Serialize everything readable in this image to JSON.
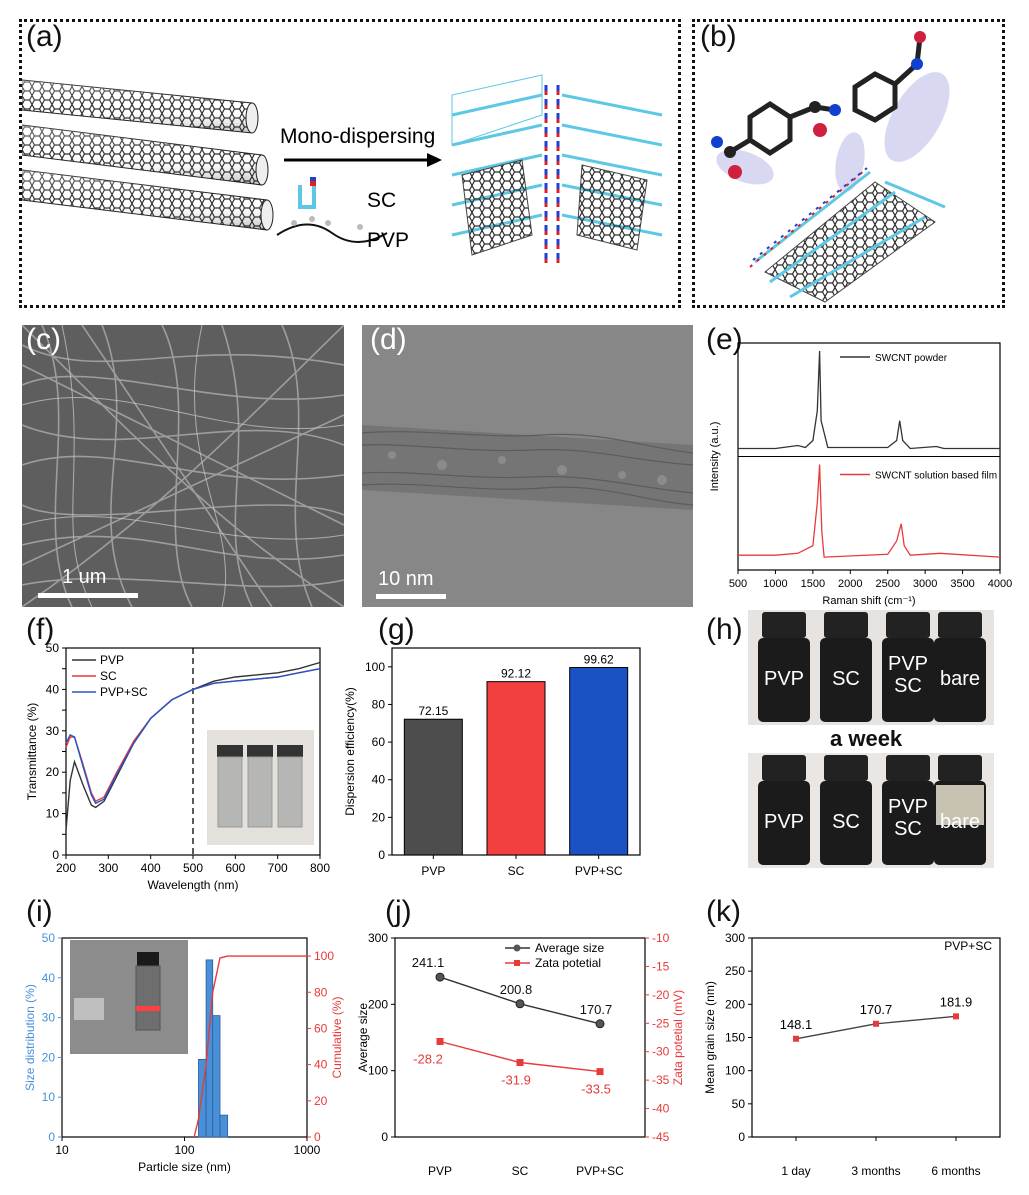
{
  "panels": {
    "a": "(a)",
    "b": "(b)",
    "c": "(c)",
    "d": "(d)",
    "e": "(e)",
    "f": "(f)",
    "g": "(g)",
    "h": "(h)",
    "i": "(i)",
    "j": "(j)",
    "k": "(k)"
  },
  "schematic_a": {
    "arrow_label": "Mono-dispersing",
    "sc_label": "SC",
    "pvp_label": "PVP"
  },
  "sem_c": {
    "scale_label": "1 um"
  },
  "tem_d": {
    "scale_label": "10 nm"
  },
  "vials_h": {
    "labels_top": [
      "PVP",
      "SC",
      "PVP SC",
      "bare"
    ],
    "caption": "a week",
    "labels_bottom": [
      "PVP",
      "SC",
      "PVP SC",
      "bare"
    ]
  },
  "colors": {
    "black_series": "#333333",
    "red_series": "#e83a3a",
    "blue_series": "#2255cc",
    "gray_bar": "#4d4d4d",
    "red_bar": "#f24040",
    "blue_bar": "#1a52c4",
    "hist_blue": "#4a90d9"
  },
  "chart_data": [
    {
      "id": "e",
      "type": "line",
      "xlabel": "Raman shift (cm⁻¹)",
      "ylabel": "Intensity (a.u.)",
      "xlim": [
        500,
        4000
      ],
      "xticks": [
        "500",
        "1000",
        "1500",
        "2000",
        "2500",
        "3000",
        "3500",
        "4000"
      ],
      "series": [
        {
          "name": "SWCNT powder",
          "color": "#333333",
          "points": [
            [
              500,
              0.02
            ],
            [
              1000,
              0.02
            ],
            [
              1300,
              0.05
            ],
            [
              1400,
              0.03
            ],
            [
              1500,
              0.1
            ],
            [
              1560,
              0.4
            ],
            [
              1590,
              1.0
            ],
            [
              1610,
              0.3
            ],
            [
              1700,
              0.03
            ],
            [
              2500,
              0.03
            ],
            [
              2620,
              0.1
            ],
            [
              2660,
              0.3
            ],
            [
              2700,
              0.1
            ],
            [
              2800,
              0.02
            ],
            [
              3150,
              0.04
            ],
            [
              3250,
              0.02
            ],
            [
              4000,
              0.02
            ]
          ]
        },
        {
          "name": "SWCNT solution based film",
          "color": "#e83a3a",
          "points": [
            [
              500,
              0.05
            ],
            [
              1000,
              0.05
            ],
            [
              1300,
              0.07
            ],
            [
              1500,
              0.15
            ],
            [
              1560,
              0.6
            ],
            [
              1590,
              1.0
            ],
            [
              1620,
              0.3
            ],
            [
              1650,
              0.03
            ],
            [
              2500,
              0.06
            ],
            [
              2620,
              0.2
            ],
            [
              2680,
              0.38
            ],
            [
              2720,
              0.15
            ],
            [
              2800,
              0.05
            ],
            [
              3200,
              0.07
            ],
            [
              4000,
              0.03
            ]
          ]
        }
      ]
    },
    {
      "id": "f",
      "type": "line",
      "xlabel": "Wavelength (nm)",
      "ylabel": "Transmittance (%)",
      "xlim": [
        200,
        800
      ],
      "ylim": [
        0,
        50
      ],
      "xticks": [
        "200",
        "300",
        "400",
        "500",
        "600",
        "700",
        "800"
      ],
      "yticks": [
        "0",
        "5",
        "10",
        "15",
        "20",
        "25",
        "30",
        "35",
        "40",
        "45",
        "50"
      ],
      "series": [
        {
          "name": "PVP",
          "color": "#333333",
          "points": [
            [
              200,
              6
            ],
            [
              210,
              18
            ],
            [
              220,
              22.5
            ],
            [
              240,
              17
            ],
            [
              260,
              12
            ],
            [
              270,
              11.5
            ],
            [
              290,
              13
            ],
            [
              320,
              19
            ],
            [
              360,
              27
            ],
            [
              400,
              33
            ],
            [
              450,
              37.5
            ],
            [
              500,
              40
            ],
            [
              550,
              42
            ],
            [
              600,
              43
            ],
            [
              650,
              43.5
            ],
            [
              700,
              44
            ],
            [
              750,
              45
            ],
            [
              800,
              46.5
            ]
          ]
        },
        {
          "name": "SC",
          "color": "#e83a3a",
          "points": [
            [
              200,
              26
            ],
            [
              210,
              28.5
            ],
            [
              220,
              28.5
            ],
            [
              240,
              22
            ],
            [
              260,
              15
            ],
            [
              270,
              13
            ],
            [
              290,
              14
            ],
            [
              320,
              20
            ],
            [
              360,
              27.5
            ],
            [
              400,
              33
            ],
            [
              450,
              37.5
            ],
            [
              500,
              40
            ],
            [
              550,
              41.5
            ],
            [
              600,
              42
            ],
            [
              650,
              42.5
            ],
            [
              700,
              43
            ],
            [
              750,
              44
            ],
            [
              800,
              45
            ]
          ]
        },
        {
          "name": "PVP+SC",
          "color": "#2255cc",
          "points": [
            [
              200,
              27
            ],
            [
              210,
              29
            ],
            [
              220,
              28.5
            ],
            [
              240,
              21.5
            ],
            [
              260,
              14.5
            ],
            [
              270,
              12.5
            ],
            [
              290,
              13.5
            ],
            [
              320,
              19.5
            ],
            [
              360,
              27
            ],
            [
              400,
              33
            ],
            [
              450,
              37.5
            ],
            [
              500,
              40
            ],
            [
              550,
              41.5
            ],
            [
              600,
              42
            ],
            [
              650,
              42.5
            ],
            [
              700,
              43
            ],
            [
              750,
              44
            ],
            [
              800,
              45
            ]
          ]
        }
      ],
      "annotation": {
        "vertical_dashed_x": 500
      }
    },
    {
      "id": "g",
      "type": "bar",
      "ylabel": "Dispersion efficiency(%)",
      "ylim": [
        0,
        100
      ],
      "yticks": [
        "0",
        "20",
        "40",
        "60",
        "80",
        "100"
      ],
      "categories": [
        "PVP",
        "SC",
        "PVP+SC"
      ],
      "values": [
        72.15,
        92.12,
        99.62
      ],
      "value_labels": [
        "72.15",
        "92.12",
        "99.62"
      ]
    },
    {
      "id": "i",
      "type": "bar",
      "xlabel": "Particle size (nm)",
      "ylabel": "Size distribution (%)",
      "y2label": "Cumulative (%)",
      "xscale": "log",
      "xlim": [
        10,
        1000
      ],
      "ylim": [
        0,
        50
      ],
      "y2lim": [
        0,
        100
      ],
      "xticks": [
        "10",
        "100",
        "1000"
      ],
      "yticks": [
        "0",
        "10",
        "20",
        "30",
        "40",
        "50"
      ],
      "y2ticks": [
        "0",
        "20",
        "40",
        "60",
        "80",
        "100"
      ],
      "histogram": [
        [
          130,
          150,
          19.5
        ],
        [
          150,
          170,
          44.5
        ],
        [
          170,
          195,
          30.5
        ],
        [
          195,
          225,
          5.5
        ]
      ],
      "cumulative": [
        [
          120,
          0
        ],
        [
          130,
          10
        ],
        [
          150,
          40
        ],
        [
          170,
          80
        ],
        [
          195,
          99
        ],
        [
          225,
          100
        ],
        [
          1000,
          100
        ]
      ]
    },
    {
      "id": "j",
      "type": "line",
      "categories": [
        "PVP",
        "SC",
        "PVP+SC"
      ],
      "ylabel": "Average size",
      "y2label": "Zata potetial (mV)",
      "ylim": [
        0,
        300
      ],
      "y2lim": [
        -45,
        -10
      ],
      "yticks": [
        "0",
        "100",
        "200",
        "300"
      ],
      "y2ticks": [
        "-45",
        "-40",
        "-35",
        "-30",
        "-25",
        "-20",
        "-15",
        "-10"
      ],
      "series": [
        {
          "name": "Average size",
          "axis": "left",
          "color": "#333333",
          "values": [
            241.1,
            200.8,
            170.7
          ],
          "labels": [
            "241.1",
            "200.8",
            "170.7"
          ]
        },
        {
          "name": "Zata potetial",
          "axis": "right",
          "color": "#e83a3a",
          "values": [
            -28.2,
            -31.9,
            -33.5
          ],
          "labels": [
            "-28.2",
            "-31.9",
            "-33.5"
          ]
        }
      ]
    },
    {
      "id": "k",
      "type": "line",
      "categories": [
        "1 day",
        "3 months",
        "6 months"
      ],
      "ylabel": "Mean grain size (nm)",
      "ylim": [
        0,
        300
      ],
      "yticks": [
        "0",
        "50",
        "100",
        "150",
        "200",
        "250",
        "300"
      ],
      "annotation_text": "PVP+SC",
      "series": [
        {
          "name": "PVP+SC",
          "color": "#e83a3a",
          "values": [
            148.1,
            170.7,
            181.9
          ],
          "labels": [
            "148.1",
            "170.7",
            "181.9"
          ]
        }
      ]
    }
  ]
}
